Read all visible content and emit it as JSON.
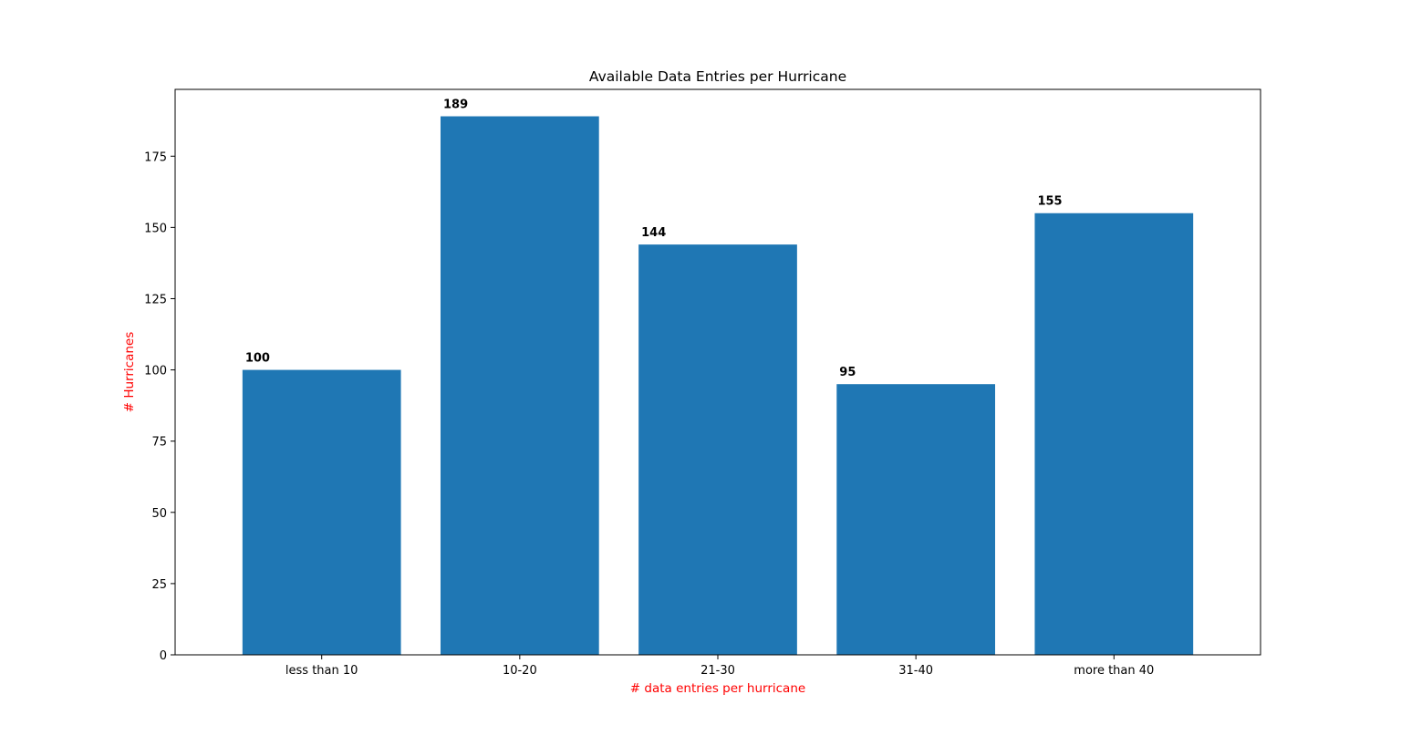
{
  "chart_data": {
    "type": "bar",
    "title": "Available Data Entries per Hurricane",
    "xlabel": "# data entries per hurricane",
    "ylabel": "# Hurricanes",
    "categories": [
      "less than 10",
      "10-20",
      "21-30",
      "31-40",
      "more than 40"
    ],
    "values": [
      100,
      189,
      144,
      95,
      155
    ],
    "data_labels": [
      "100",
      "189",
      "144",
      "95",
      "155"
    ],
    "ylim": [
      0,
      198.45
    ],
    "yticks": [
      0,
      25,
      50,
      75,
      100,
      125,
      150,
      175
    ],
    "ytick_labels": [
      "0",
      "25",
      "50",
      "75",
      "100",
      "125",
      "150",
      "175"
    ],
    "grid": false,
    "colors": {
      "bar": "#1f77b4",
      "axis_label": "#ff0000",
      "text": "#000000",
      "frame": "#000000"
    }
  }
}
